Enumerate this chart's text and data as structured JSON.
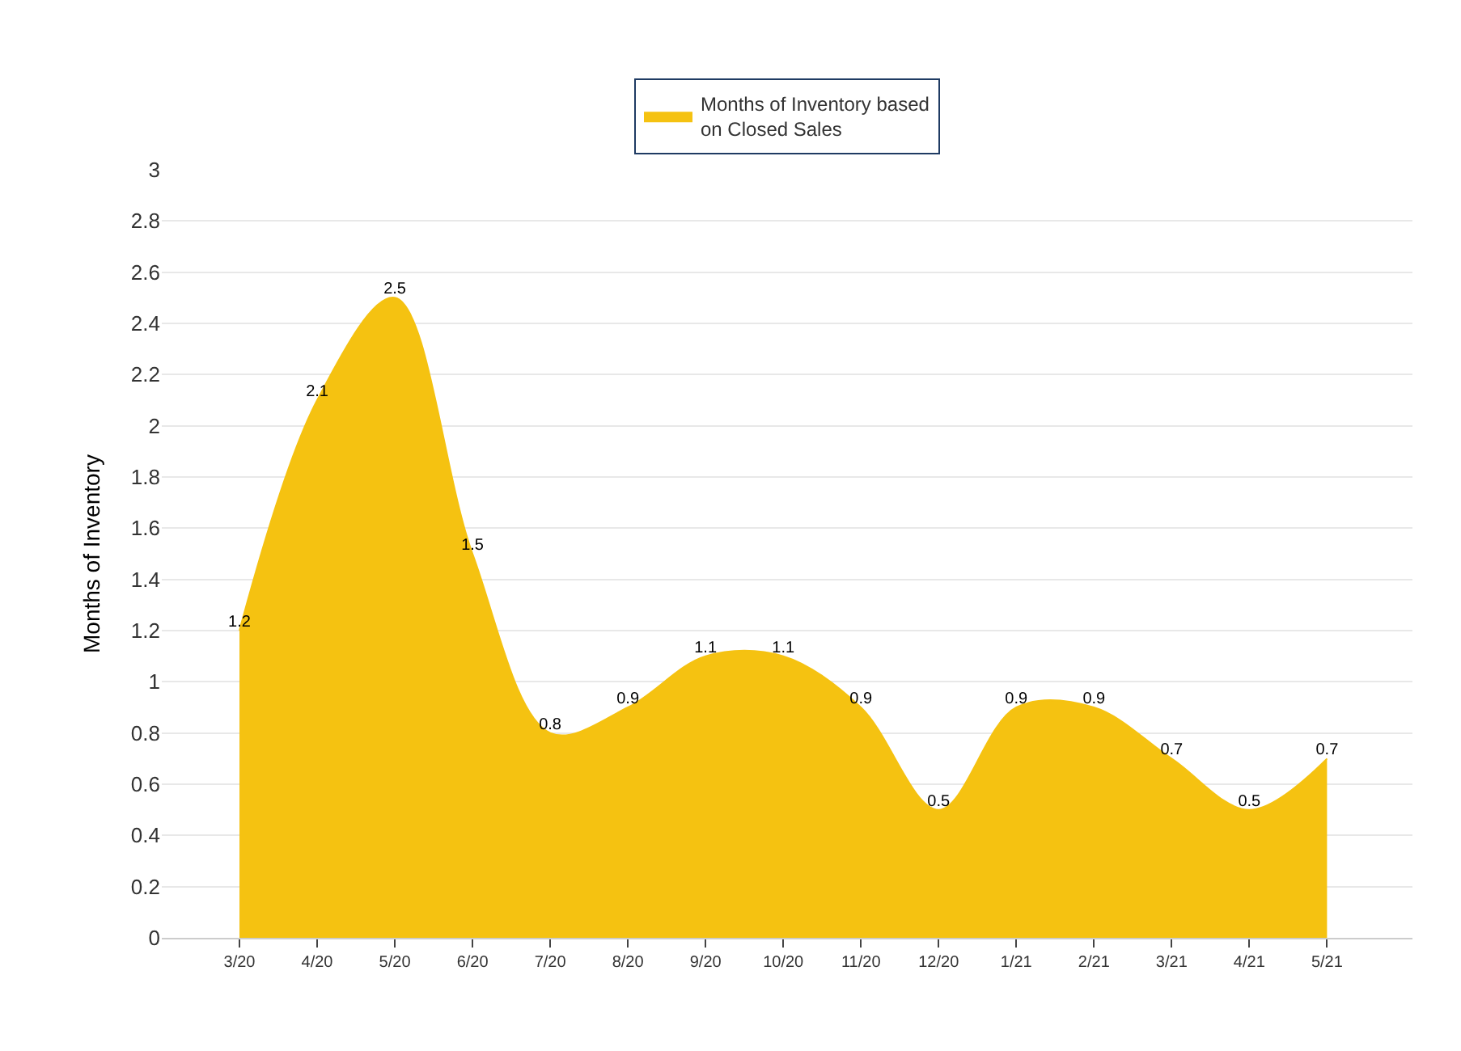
{
  "chart_data": {
    "type": "area",
    "ylabel": "Months of Inventory",
    "categories": [
      "3/20",
      "4/20",
      "5/20",
      "6/20",
      "7/20",
      "8/20",
      "9/20",
      "10/20",
      "11/20",
      "12/20",
      "1/21",
      "2/21",
      "3/21",
      "4/21",
      "5/21"
    ],
    "series": [
      {
        "name": "Months of Inventory based\non Closed Sales",
        "color": "#f5c211",
        "values": [
          1.2,
          2.1,
          2.5,
          1.5,
          0.8,
          0.9,
          1.1,
          1.1,
          0.9,
          0.5,
          0.9,
          0.9,
          0.7,
          0.5,
          0.7
        ]
      }
    ],
    "ylim": [
      0,
      3
    ],
    "yticks": [
      0,
      0.2,
      0.4,
      0.6,
      0.8,
      1,
      1.2,
      1.4,
      1.6,
      1.8,
      2,
      2.2,
      2.4,
      2.6,
      2.8,
      3
    ],
    "grid": "y",
    "legend": "top",
    "data_labels": true
  }
}
